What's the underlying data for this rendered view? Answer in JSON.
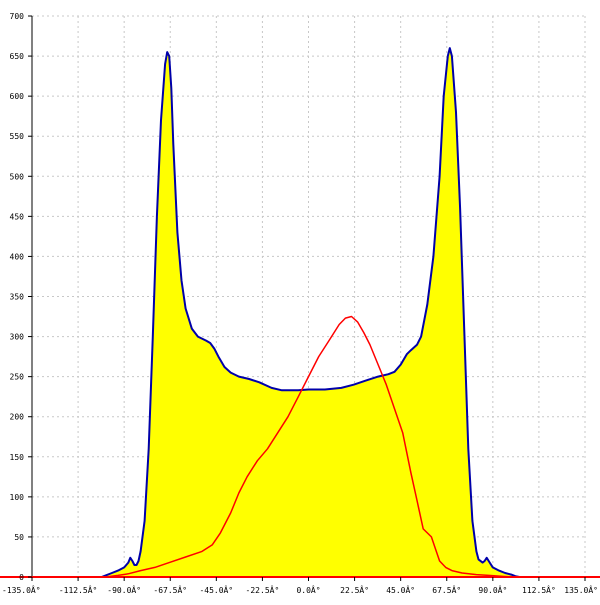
{
  "chart_data": {
    "type": "area",
    "title": "",
    "xlabel": "",
    "ylabel": "",
    "xlim": [
      -135,
      135
    ],
    "ylim": [
      0,
      700
    ],
    "grid": true,
    "x_ticks": [
      -135,
      -112.5,
      -90,
      -67.5,
      -45,
      -22.5,
      0,
      22.5,
      45,
      67.5,
      90,
      112.5,
      135
    ],
    "x_tick_labels": [
      "-135.0Â°",
      "-112.5Â°",
      "-90.0Â°",
      "-67.5Â°",
      "-45.0Â°",
      "-22.5Â°",
      "0.0Â°",
      "22.5Â°",
      "45.0Â°",
      "67.5Â°",
      "90.0Â°",
      "112.5Â°",
      "135.0Â°"
    ],
    "y_ticks": [
      0,
      50,
      100,
      150,
      200,
      250,
      300,
      350,
      400,
      450,
      500,
      550,
      600,
      650,
      700
    ],
    "y_tick_labels": [
      "0",
      "50",
      "100",
      "150",
      "200",
      "250",
      "300",
      "350",
      "400",
      "450",
      "500",
      "550",
      "600",
      "650",
      "700"
    ],
    "series": [
      {
        "kind": "filled-area",
        "fill": "#ffff00",
        "stroke": "#0000aa",
        "points": [
          [
            -101,
            0
          ],
          [
            -99,
            2
          ],
          [
            -96,
            5
          ],
          [
            -93,
            8
          ],
          [
            -90,
            12
          ],
          [
            -88,
            18
          ],
          [
            -87,
            24
          ],
          [
            -86,
            20
          ],
          [
            -85,
            15
          ],
          [
            -84,
            15
          ],
          [
            -83,
            20
          ],
          [
            -82,
            32
          ],
          [
            -80,
            70
          ],
          [
            -78,
            160
          ],
          [
            -76,
            300
          ],
          [
            -74,
            450
          ],
          [
            -72,
            570
          ],
          [
            -70,
            640
          ],
          [
            -69,
            655
          ],
          [
            -68,
            650
          ],
          [
            -67,
            610
          ],
          [
            -66,
            540
          ],
          [
            -64,
            430
          ],
          [
            -62,
            370
          ],
          [
            -60,
            335
          ],
          [
            -57,
            310
          ],
          [
            -54,
            300
          ],
          [
            -50,
            295
          ],
          [
            -48,
            292
          ],
          [
            -46,
            285
          ],
          [
            -44,
            275
          ],
          [
            -41,
            262
          ],
          [
            -38,
            255
          ],
          [
            -34,
            250
          ],
          [
            -29,
            247
          ],
          [
            -24,
            243
          ],
          [
            -18,
            236
          ],
          [
            -13,
            233
          ],
          [
            -5,
            233
          ],
          [
            0,
            234
          ],
          [
            8,
            234
          ],
          [
            16,
            236
          ],
          [
            22,
            240
          ],
          [
            28,
            245
          ],
          [
            34,
            250
          ],
          [
            39,
            253
          ],
          [
            42,
            256
          ],
          [
            45,
            265
          ],
          [
            48,
            278
          ],
          [
            50,
            283
          ],
          [
            53,
            290
          ],
          [
            55,
            300
          ],
          [
            58,
            340
          ],
          [
            61,
            400
          ],
          [
            64,
            500
          ],
          [
            66,
            600
          ],
          [
            68,
            650
          ],
          [
            69,
            660
          ],
          [
            70,
            650
          ],
          [
            72,
            580
          ],
          [
            74,
            460
          ],
          [
            76,
            310
          ],
          [
            78,
            160
          ],
          [
            80,
            70
          ],
          [
            82,
            32
          ],
          [
            83,
            22
          ],
          [
            85,
            18
          ],
          [
            86,
            20
          ],
          [
            87,
            24
          ],
          [
            88,
            20
          ],
          [
            90,
            12
          ],
          [
            93,
            8
          ],
          [
            96,
            5
          ],
          [
            99,
            3
          ],
          [
            101,
            1
          ],
          [
            103,
            0
          ]
        ]
      },
      {
        "kind": "line",
        "stroke": "#ff0000",
        "points": [
          [
            -99,
            0
          ],
          [
            -93,
            2
          ],
          [
            -88,
            4
          ],
          [
            -82,
            8
          ],
          [
            -75,
            12
          ],
          [
            -68,
            18
          ],
          [
            -60,
            25
          ],
          [
            -52,
            32
          ],
          [
            -47,
            40
          ],
          [
            -43,
            55
          ],
          [
            -38,
            80
          ],
          [
            -34,
            105
          ],
          [
            -30,
            125
          ],
          [
            -25,
            145
          ],
          [
            -20,
            160
          ],
          [
            -15,
            180
          ],
          [
            -10,
            200
          ],
          [
            -5,
            225
          ],
          [
            0,
            250
          ],
          [
            5,
            275
          ],
          [
            10,
            295
          ],
          [
            15,
            315
          ],
          [
            18,
            323
          ],
          [
            21,
            325
          ],
          [
            24,
            318
          ],
          [
            27,
            305
          ],
          [
            30,
            290
          ],
          [
            34,
            265
          ],
          [
            38,
            240
          ],
          [
            42,
            210
          ],
          [
            46,
            180
          ],
          [
            50,
            130
          ],
          [
            53,
            95
          ],
          [
            56,
            60
          ],
          [
            58,
            55
          ],
          [
            60,
            50
          ],
          [
            62,
            35
          ],
          [
            64,
            20
          ],
          [
            67,
            12
          ],
          [
            70,
            8
          ],
          [
            75,
            5
          ],
          [
            82,
            3
          ],
          [
            88,
            2
          ],
          [
            94,
            1
          ],
          [
            100,
            0
          ]
        ]
      }
    ]
  }
}
